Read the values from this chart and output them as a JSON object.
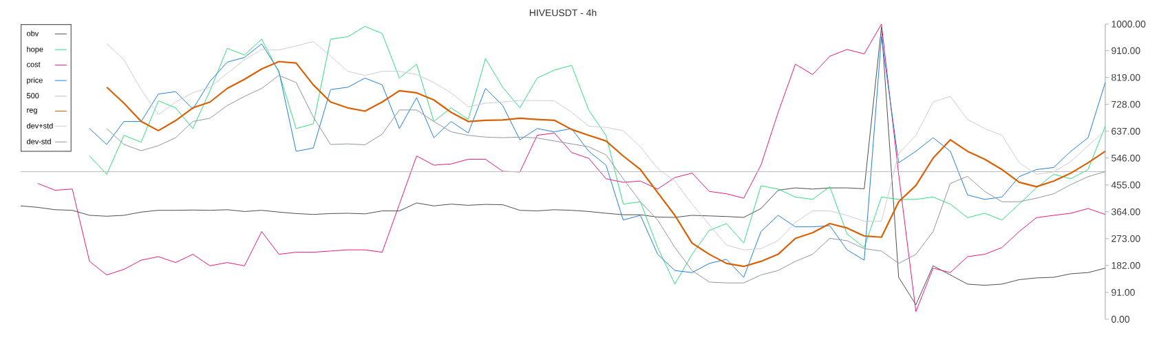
{
  "chart_data": {
    "type": "line",
    "title": "HIVEUSDT - 4h",
    "categories": [
      null,
      null,
      null,
      null,
      null,
      null,
      null,
      null,
      null,
      null,
      null,
      null,
      null,
      null,
      null,
      null,
      null,
      null,
      null,
      null,
      null,
      null,
      null,
      null,
      null,
      null,
      null,
      null,
      null,
      null,
      null,
      null,
      null,
      null,
      null,
      null,
      null,
      null,
      null,
      null,
      null,
      null,
      null,
      null,
      null,
      null,
      null,
      null,
      null,
      null,
      null,
      null,
      null,
      null,
      null,
      null,
      null,
      null,
      null,
      null,
      null,
      null,
      null,
      null
    ],
    "series": [
      {
        "name": "obv",
        "color": "#4d4d4d",
        "values": [
          384,
          379,
          371,
          369,
          352,
          349,
          352,
          363,
          369,
          369,
          370,
          369,
          371,
          365,
          369,
          363,
          358,
          355,
          358,
          359,
          357,
          367,
          367,
          394,
          384,
          390,
          386,
          389,
          388,
          369,
          367,
          371,
          369,
          365,
          359,
          354,
          354,
          346,
          345,
          352,
          350,
          348,
          345,
          375,
          437,
          445,
          441,
          445,
          445,
          442,
          990,
          142,
          49,
          181,
          150,
          119,
          115,
          119,
          134,
          140,
          142,
          154,
          158,
          173
        ]
      },
      {
        "name": "hope",
        "color": "#2ee07a",
        "values": [
          null,
          null,
          null,
          null,
          553,
          491,
          623,
          600,
          740,
          716,
          646,
          774,
          918,
          895,
          949,
          836,
          646,
          662,
          949,
          957,
          992,
          968,
          817,
          864,
          670,
          716,
          677,
          883,
          786,
          716,
          817,
          844,
          860,
          708,
          623,
          390,
          398,
          243,
          119,
          220,
          301,
          324,
          258,
          452,
          441,
          414,
          406,
          449,
          289,
          243,
          414,
          406,
          406,
          414,
          390,
          344,
          359,
          336,
          390,
          445,
          491,
          476,
          507,
          654
        ]
      },
      {
        "name": "cost",
        "color": "#e8177f",
        "values": [
          null,
          460,
          437,
          441,
          196,
          150,
          169,
          200,
          212,
          192,
          220,
          181,
          192,
          181,
          297,
          220,
          227,
          227,
          231,
          235,
          235,
          227,
          390,
          553,
          522,
          526,
          542,
          542,
          501,
          499,
          623,
          631,
          565,
          545,
          476,
          464,
          468,
          441,
          480,
          495,
          433,
          425,
          410,
          522,
          701,
          864,
          829,
          891,
          914,
          899,
          1000,
          491,
          26,
          173,
          158,
          212,
          220,
          243,
          297,
          344,
          352,
          359,
          375,
          355
        ]
      },
      {
        "name": "price",
        "color": "#1e7fe0",
        "values": [
          null,
          null,
          null,
          null,
          646,
          592,
          670,
          670,
          763,
          771,
          712,
          806,
          871,
          887,
          933,
          840,
          569,
          580,
          778,
          786,
          817,
          794,
          646,
          751,
          615,
          670,
          631,
          782,
          724,
          608,
          646,
          635,
          646,
          569,
          522,
          336,
          352,
          220,
          165,
          158,
          189,
          203,
          142,
          297,
          352,
          313,
          313,
          317,
          235,
          200,
          957,
          530,
          569,
          615,
          569,
          421,
          406,
          414,
          483,
          507,
          514,
          569,
          615,
          802
        ]
      },
      {
        "name": "500",
        "color": "#bdbdbd",
        "values": [
          500,
          500,
          500,
          500,
          500,
          500,
          500,
          500,
          500,
          500,
          500,
          500,
          500,
          500,
          500,
          500,
          500,
          500,
          500,
          500,
          500,
          500,
          500,
          500,
          500,
          500,
          500,
          500,
          500,
          500,
          500,
          500,
          500,
          500,
          500,
          500,
          500,
          500,
          500,
          500,
          500,
          500,
          500,
          500,
          500,
          500,
          500,
          500,
          500,
          500,
          500,
          500,
          500,
          500,
          500,
          500,
          500,
          500,
          500,
          500,
          500,
          500,
          500,
          500
        ]
      },
      {
        "name": "reg",
        "color": "#d95f02",
        "values": [
          null,
          null,
          null,
          null,
          null,
          786,
          732,
          670,
          639,
          673,
          716,
          736,
          782,
          813,
          848,
          873,
          868,
          794,
          736,
          716,
          705,
          736,
          774,
          767,
          743,
          701,
          670,
          674,
          675,
          681,
          677,
          674,
          643,
          623,
          604,
          553,
          507,
          429,
          352,
          258,
          220,
          189,
          179,
          196,
          220,
          274,
          293,
          324,
          309,
          282,
          278,
          398,
          453,
          546,
          608,
          569,
          542,
          507,
          464,
          449,
          468,
          495,
          530,
          569
        ]
      },
      {
        "name": "dev+std",
        "color": "#c9ced2",
        "values": [
          null,
          null,
          null,
          null,
          null,
          934,
          879,
          778,
          693,
          736,
          767,
          786,
          833,
          879,
          914,
          912,
          926,
          941,
          891,
          840,
          826,
          840,
          840,
          829,
          802,
          767,
          720,
          732,
          736,
          741,
          741,
          740,
          701,
          654,
          650,
          639,
          584,
          511,
          468,
          390,
          320,
          251,
          235,
          239,
          266,
          328,
          367,
          367,
          352,
          332,
          332,
          561,
          623,
          736,
          755,
          677,
          646,
          623,
          530,
          491,
          499,
          534,
          588,
          639
        ]
      },
      {
        "name": "dev-std",
        "color": "#8d979e",
        "values": [
          null,
          null,
          null,
          null,
          null,
          646,
          592,
          571,
          588,
          615,
          670,
          681,
          724,
          755,
          782,
          826,
          802,
          685,
          592,
          594,
          591,
          627,
          709,
          709,
          670,
          635,
          623,
          617,
          615,
          617,
          614,
          604,
          594,
          584,
          557,
          476,
          398,
          336,
          243,
          165,
          126,
          123,
          123,
          150,
          165,
          196,
          220,
          274,
          266,
          239,
          231,
          189,
          220,
          297,
          460,
          484,
          433,
          398,
          398,
          410,
          425,
          456,
          483,
          500
        ]
      }
    ],
    "ylim": [
      0,
      1000
    ],
    "yticks": [
      {
        "value": 0,
        "label": "0.00"
      },
      {
        "value": 91,
        "label": "91.00"
      },
      {
        "value": 182,
        "label": "182.00"
      },
      {
        "value": 273,
        "label": "273.00"
      },
      {
        "value": 364,
        "label": "364.00"
      },
      {
        "value": 455,
        "label": "455.00"
      },
      {
        "value": 546,
        "label": "546.00"
      },
      {
        "value": 637,
        "label": "637.00"
      },
      {
        "value": 728,
        "label": "728.00"
      },
      {
        "value": 819,
        "label": "819.00"
      },
      {
        "value": 910,
        "label": "910.00"
      },
      {
        "value": 1000,
        "label": "1000.00"
      }
    ],
    "tick_labels": "y",
    "legend": "top left",
    "marker": "none",
    "line_style": "solid"
  }
}
